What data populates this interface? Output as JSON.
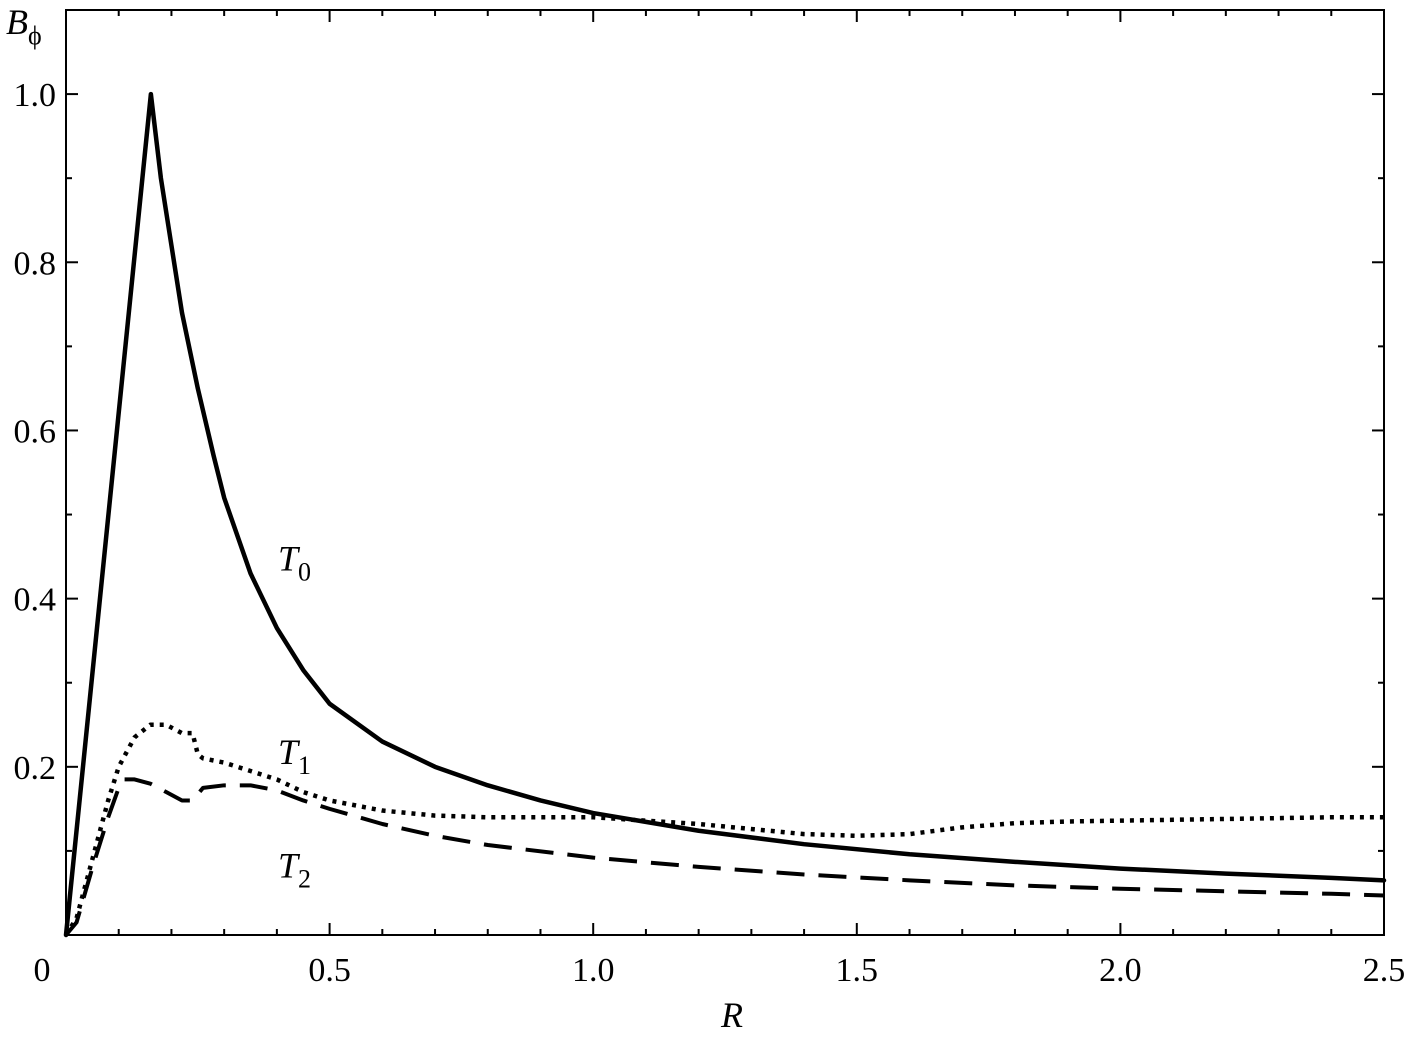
{
  "chart_data": {
    "type": "line",
    "xlabel": "R",
    "ylabel": {
      "main": "B",
      "sub": "ϕ"
    },
    "xlim": [
      0,
      2.5
    ],
    "ylim": [
      0,
      1.1
    ],
    "grid": false,
    "x_ticks": [
      {
        "value": 0,
        "label": "0"
      },
      {
        "value": 0.5,
        "label": "0.5"
      },
      {
        "value": 1.0,
        "label": "1.0"
      },
      {
        "value": 1.5,
        "label": "1.5"
      },
      {
        "value": 2.0,
        "label": "2.0"
      },
      {
        "value": 2.5,
        "label": "2.5"
      }
    ],
    "y_ticks": [
      {
        "value": 0.2,
        "label": "0.2"
      },
      {
        "value": 0.4,
        "label": "0.4"
      },
      {
        "value": 0.6,
        "label": "0.6"
      },
      {
        "value": 0.8,
        "label": "0.8"
      },
      {
        "value": 1.0,
        "label": "1.0"
      }
    ],
    "series": [
      {
        "name": "T0",
        "label_main": "T",
        "label_sub": "0",
        "style": "solid",
        "label_at": [
          0.44,
          0.45
        ],
        "x": [
          0,
          0.161,
          0.18,
          0.2,
          0.22,
          0.25,
          0.28,
          0.3,
          0.35,
          0.4,
          0.45,
          0.5,
          0.6,
          0.7,
          0.8,
          0.9,
          1.0,
          1.2,
          1.4,
          1.6,
          1.8,
          2.0,
          2.2,
          2.4,
          2.5
        ],
        "y": [
          0,
          1.0,
          0.9,
          0.82,
          0.74,
          0.65,
          0.57,
          0.52,
          0.43,
          0.365,
          0.315,
          0.275,
          0.23,
          0.2,
          0.178,
          0.16,
          0.145,
          0.124,
          0.108,
          0.096,
          0.087,
          0.079,
          0.073,
          0.068,
          0.065
        ]
      },
      {
        "name": "T1",
        "label_main": "T",
        "label_sub": "1",
        "style": "dotted",
        "label_at": [
          0.44,
          0.22
        ],
        "x": [
          0,
          0.02,
          0.05,
          0.08,
          0.1,
          0.13,
          0.16,
          0.19,
          0.22,
          0.24,
          0.25,
          0.26,
          0.3,
          0.35,
          0.4,
          0.45,
          0.5,
          0.6,
          0.7,
          0.8,
          1.0,
          1.2,
          1.4,
          1.5,
          1.6,
          1.7,
          1.8,
          1.9,
          2.0,
          2.2,
          2.4,
          2.5
        ],
        "y": [
          0,
          0.02,
          0.09,
          0.16,
          0.2,
          0.235,
          0.25,
          0.25,
          0.24,
          0.24,
          0.215,
          0.21,
          0.205,
          0.195,
          0.185,
          0.17,
          0.16,
          0.148,
          0.142,
          0.14,
          0.14,
          0.132,
          0.12,
          0.118,
          0.12,
          0.128,
          0.133,
          0.135,
          0.136,
          0.138,
          0.14,
          0.14
        ]
      },
      {
        "name": "T2",
        "label_main": "T",
        "label_sub": "2",
        "style": "dashed",
        "label_at": [
          0.44,
          0.085
        ],
        "x": [
          0,
          0.02,
          0.05,
          0.08,
          0.1,
          0.11,
          0.13,
          0.16,
          0.19,
          0.22,
          0.24,
          0.26,
          0.3,
          0.35,
          0.4,
          0.45,
          0.5,
          0.6,
          0.7,
          0.8,
          1.0,
          1.2,
          1.4,
          1.6,
          1.8,
          2.0,
          2.2,
          2.4,
          2.5
        ],
        "y": [
          0,
          0.015,
          0.08,
          0.14,
          0.175,
          0.185,
          0.185,
          0.18,
          0.17,
          0.16,
          0.16,
          0.175,
          0.178,
          0.178,
          0.172,
          0.16,
          0.15,
          0.132,
          0.118,
          0.107,
          0.092,
          0.081,
          0.072,
          0.065,
          0.059,
          0.055,
          0.052,
          0.049,
          0.047
        ]
      }
    ]
  }
}
